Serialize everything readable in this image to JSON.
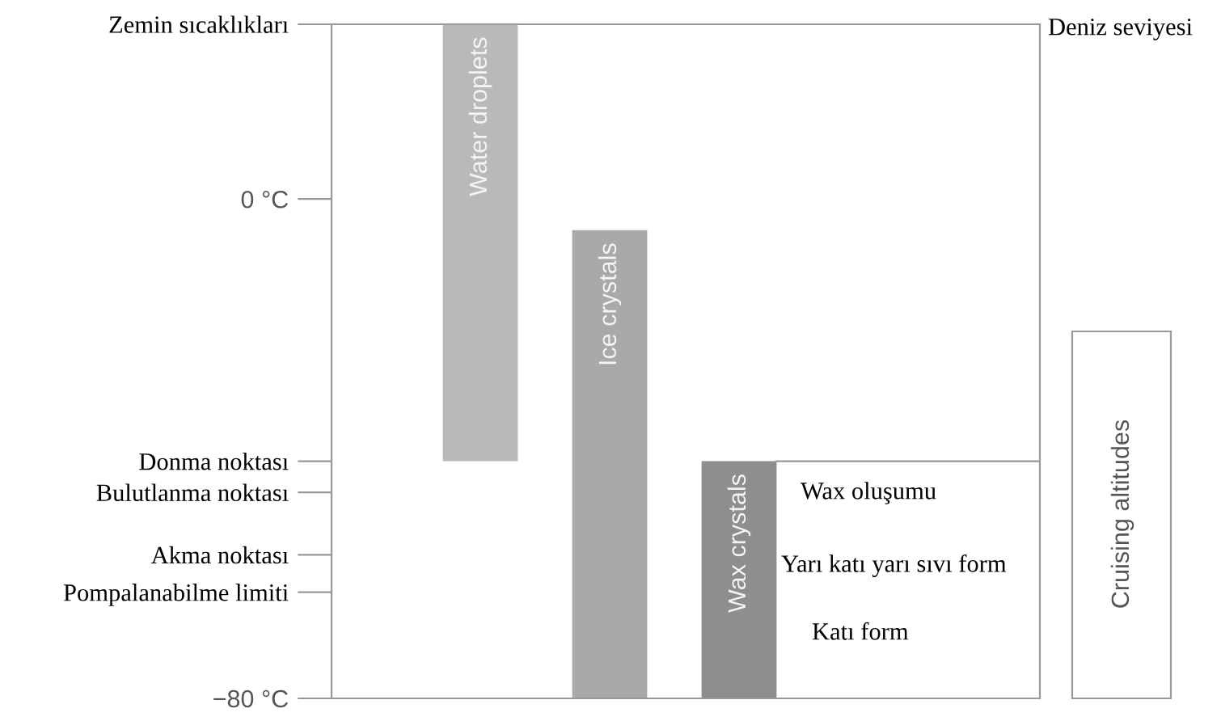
{
  "chart_data": {
    "type": "bar",
    "categories": [
      "Water droplets",
      "Ice crystals",
      "Wax crystals"
    ],
    "values": [
      70,
      75,
      38
    ],
    "base": [
      -42,
      -80,
      -80
    ],
    "colors": [
      "#b9b9b9",
      "#a9a9a9",
      "#8e8e8e"
    ],
    "ylim": [
      -80,
      28
    ],
    "yticks": [
      {
        "value": 28,
        "label": "Zemin sıcaklıkları"
      },
      {
        "value": 0,
        "label": "0 °C"
      },
      {
        "value": -42,
        "label": "Donma noktası"
      },
      {
        "value": -47,
        "label": "Bulutlanma noktası"
      },
      {
        "value": -57,
        "label": "Akma noktası"
      },
      {
        "value": -63,
        "label": "Pompalanabilme limiti"
      },
      {
        "value": -80,
        "label": "−80 °C"
      }
    ],
    "tick_labels": "y",
    "grid": false,
    "annotations": [
      "Deniz seviyesi",
      "Wax oluşumu",
      "Yarı katı yarı sıvı form",
      "Katı form",
      "Cruising altitudes"
    ]
  }
}
